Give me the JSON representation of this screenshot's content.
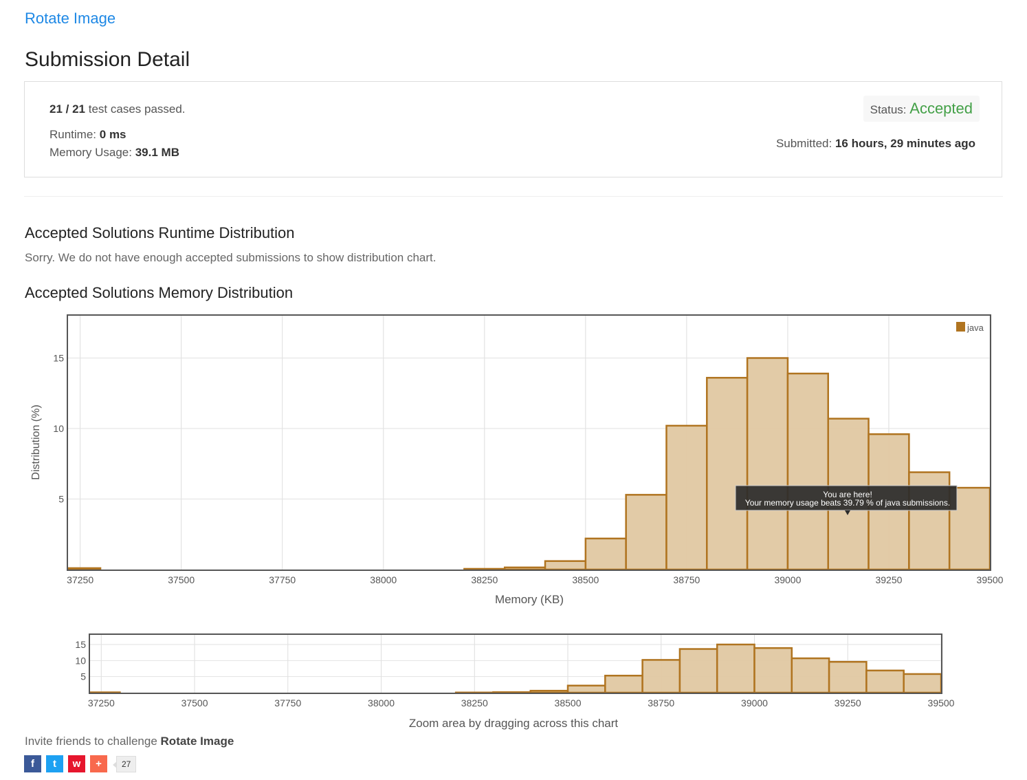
{
  "problem": {
    "title": "Rotate Image"
  },
  "page_title": "Submission Detail",
  "detail": {
    "passed_count": "21 / 21",
    "passed_text": "test cases passed.",
    "runtime_label": "Runtime:",
    "runtime_value": "0 ms",
    "memory_label": "Memory Usage:",
    "memory_value": "39.1 MB",
    "status_label": "Status:",
    "status_value": "Accepted",
    "submitted_label": "Submitted:",
    "submitted_value": "16 hours, 29 minutes ago"
  },
  "runtime_section": {
    "title": "Accepted Solutions Runtime Distribution",
    "message": "Sorry. We do not have enough accepted submissions to show distribution chart."
  },
  "memory_section": {
    "title": "Accepted Solutions Memory Distribution"
  },
  "tooltip": {
    "line1": "You are here!",
    "line2": "Your memory usage beats 39.79 % of java submissions."
  },
  "navigator": {
    "caption": "Zoom area by dragging across this chart"
  },
  "invite": {
    "prefix": "Invite friends to challenge",
    "problem": "Rotate Image"
  },
  "share": {
    "buttons": [
      {
        "icon": "facebook-icon",
        "glyph": "f",
        "color": "#3b5998"
      },
      {
        "icon": "twitter-icon",
        "glyph": "t",
        "color": "#1da1f2"
      },
      {
        "icon": "weibo-icon",
        "glyph": "w",
        "color": "#e6162d"
      },
      {
        "icon": "plus-icon",
        "glyph": "+",
        "color": "#f8694d"
      }
    ],
    "count": "27"
  },
  "colors": {
    "bar_fill": "#e0c8a2",
    "bar_stroke": "#b07420",
    "accent": "#1e88e5",
    "accepted": "#43a047"
  },
  "chart_data": [
    {
      "type": "bar",
      "xlabel": "Memory (KB)",
      "ylabel": "Distribution (%)",
      "xlim": [
        37220,
        39500
      ],
      "ylim": [
        0,
        18
      ],
      "xticks": [
        37250,
        37500,
        37750,
        38000,
        38250,
        38500,
        38750,
        39000,
        39250,
        39500
      ],
      "yticks": [
        5,
        10,
        15
      ],
      "grid": true,
      "legend": "top-right",
      "series": [
        {
          "name": "java",
          "bins": [
            {
              "x": 37250,
              "y": 0.1
            },
            {
              "x": 38250,
              "y": 0.05
            },
            {
              "x": 38350,
              "y": 0.15
            },
            {
              "x": 38450,
              "y": 0.6
            },
            {
              "x": 38550,
              "y": 2.2
            },
            {
              "x": 38650,
              "y": 5.3
            },
            {
              "x": 38750,
              "y": 10.2
            },
            {
              "x": 38850,
              "y": 13.6
            },
            {
              "x": 38950,
              "y": 15.0
            },
            {
              "x": 39050,
              "y": 13.9
            },
            {
              "x": 39150,
              "y": 10.7
            },
            {
              "x": 39250,
              "y": 9.6
            },
            {
              "x": 39350,
              "y": 6.9
            },
            {
              "x": 39450,
              "y": 5.8
            }
          ],
          "bin_width": 100
        }
      ]
    }
  ]
}
